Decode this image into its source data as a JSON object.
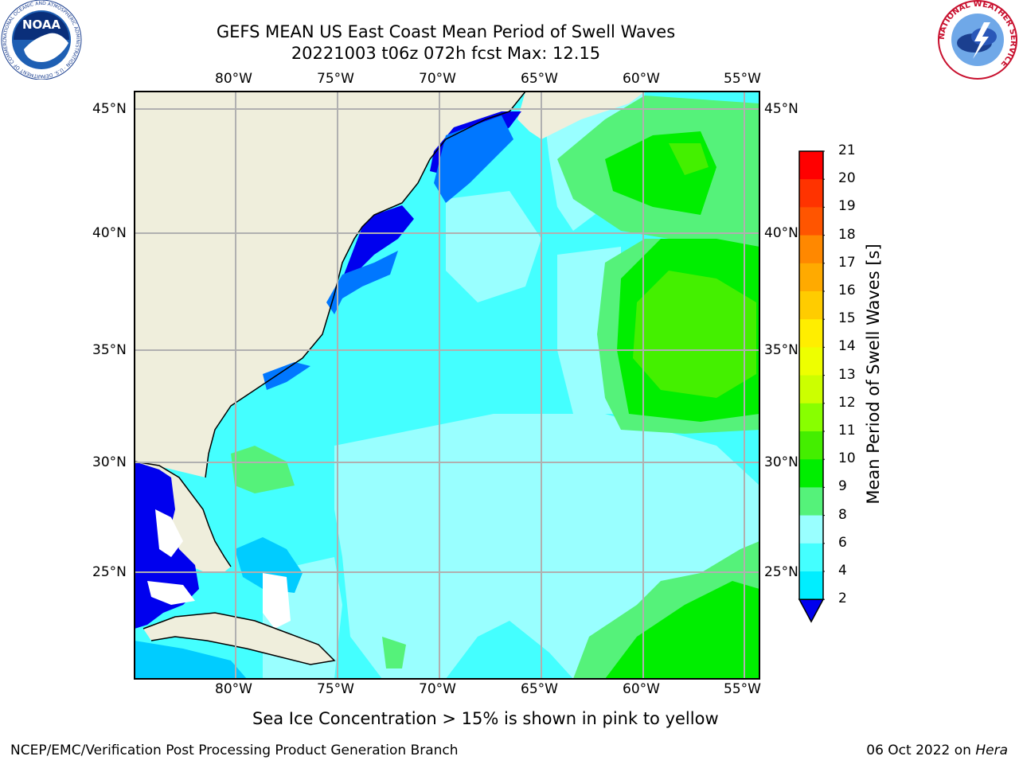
{
  "title": {
    "line1": "GEFS MEAN US East Coast Mean Period of Swell Waves",
    "line2": "20221003 t06z 072h fcst   Max: 12.15"
  },
  "map": {
    "lon_labels": [
      "80°W",
      "75°W",
      "70°W",
      "65°W",
      "60°W",
      "55°W"
    ],
    "lat_labels": [
      "45°N",
      "40°N",
      "35°N",
      "30°N",
      "25°N"
    ],
    "colors": {
      "land": "#efeedc",
      "ocean_base": "#44ffff",
      "light_cyan": "#99ffff",
      "light_green": "#55f27a",
      "green": "#00ee00",
      "green_yellow": "#44f000",
      "blue": "#0000ee",
      "mid_blue": "#0077ff",
      "cyan": "#00ccff",
      "gridline": "#b0b0b0"
    }
  },
  "colorbar": {
    "title": "Mean Period of Swell Waves [s]",
    "levels": [
      "21",
      "20",
      "19",
      "18",
      "17",
      "16",
      "15",
      "14",
      "13",
      "12",
      "11",
      "10",
      "9",
      "8",
      "6",
      "4",
      "2"
    ],
    "colors": [
      "#ff0000",
      "#ff3300",
      "#ff5500",
      "#ff8800",
      "#ffaa00",
      "#ffcc00",
      "#ffee00",
      "#eeff00",
      "#ccff00",
      "#88ff00",
      "#44ee00",
      "#00ee00",
      "#55f27a",
      "#99ffff",
      "#44ffff",
      "#00eeff",
      "#0077ff"
    ],
    "extend_color": "#0000ee"
  },
  "note": "Sea Ice Concentration > 15% is shown in pink to yellow",
  "footer": {
    "left": "NCEP/EMC/Verification Post Processing Product Generation Branch",
    "date": "06 Oct 2022 on ",
    "machine": "Hera"
  },
  "logos": {
    "noaa": "NOAA",
    "noaa_ring": "NATIONAL OCEANIC AND ATMOSPHERIC ADMINISTRATION · U.S. DEPARTMENT OF COMMERCE",
    "nws_ring": "NATIONAL WEATHER SERVICE"
  }
}
